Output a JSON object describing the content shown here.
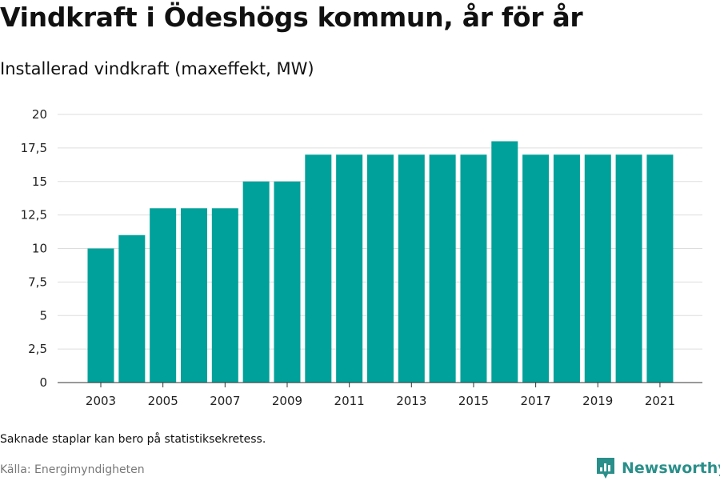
{
  "chart_data": {
    "type": "bar",
    "title": "Vindkraft i Ödeshögs kommun, år för år",
    "subtitle": "Installerad vindkraft (maxeffekt, MW)",
    "categories": [
      "2003",
      "2004",
      "2005",
      "2006",
      "2007",
      "2008",
      "2009",
      "2010",
      "2011",
      "2012",
      "2013",
      "2014",
      "2015",
      "2016",
      "2017",
      "2018",
      "2019",
      "2020",
      "2021"
    ],
    "values": [
      10,
      11,
      13,
      13,
      13,
      15,
      15,
      17,
      17,
      17,
      17,
      17,
      17,
      18,
      17,
      17,
      17,
      17,
      17
    ],
    "x_tick_labels": [
      "2003",
      "2005",
      "2007",
      "2009",
      "2011",
      "2013",
      "2015",
      "2017",
      "2019",
      "2021"
    ],
    "y_ticks": [
      0,
      2.5,
      5,
      7.5,
      10,
      12.5,
      15,
      17.5,
      20
    ],
    "y_tick_labels": [
      "0",
      "2,5",
      "5",
      "7,5",
      "10",
      "12,5",
      "15",
      "17,5",
      "20"
    ],
    "ylim": [
      0,
      20
    ],
    "grid": true,
    "bar_color": "#00a19a"
  },
  "footer": {
    "note": "Saknade staplar kan bero på statistiksekretess.",
    "source": "Källa: Energimyndigheten",
    "brand": "Newsworthy",
    "brand_icon": "newsworthy-bar-chart-icon",
    "brand_color": "#2a8f8a"
  }
}
